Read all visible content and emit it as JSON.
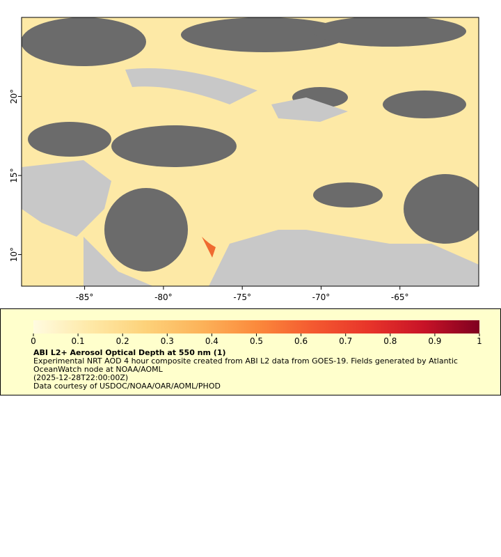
{
  "map": {
    "xlim": [
      -89,
      -60
    ],
    "ylim": [
      8,
      25
    ],
    "xticks": [
      {
        "value": -85,
        "label": "-85°"
      },
      {
        "value": -80,
        "label": "-80°"
      },
      {
        "value": -75,
        "label": "-75°"
      },
      {
        "value": -70,
        "label": "-70°"
      },
      {
        "value": -65,
        "label": "-65°"
      }
    ],
    "yticks": [
      {
        "value": 10,
        "label": "10°"
      },
      {
        "value": 15,
        "label": "15°"
      },
      {
        "value": 20,
        "label": "20°"
      }
    ]
  },
  "colorbar": {
    "range": [
      0,
      1
    ],
    "ticks": [
      0,
      0.1,
      0.2,
      0.3,
      0.4,
      0.5,
      0.6,
      0.7,
      0.8,
      0.9,
      1
    ],
    "colors": [
      "#fffbe0",
      "#fee9a8",
      "#fdd27a",
      "#fcb35a",
      "#fb8a3c",
      "#f45a30",
      "#e8352a",
      "#c81327",
      "#7f0020"
    ]
  },
  "legend": {
    "title": "ABI L2+ Aerosol Optical Depth at 550 nm (1)",
    "description": "Experimental NRT AOD 4 hour composite created from ABI L2 data from GOES-19. Fields generated by Atlantic OceanWatch node at NOAA/AOML",
    "time": "(2025-12-28T22:00:00Z)",
    "credit": "Data courtesy of USDOC/NOAA/OAR/AOML/PHOD"
  }
}
